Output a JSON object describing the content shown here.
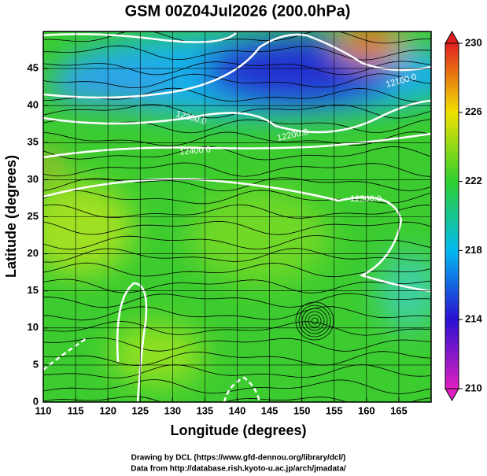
{
  "map": {
    "title": "GSM 00Z04Jul2026 (200.0hPa)",
    "x_label": "Longitude (degrees)",
    "y_label": "Latitude  (degrees)",
    "xlim": [
      110,
      170
    ],
    "ylim": [
      0,
      50
    ],
    "xticks": [
      110,
      115,
      120,
      125,
      130,
      135,
      140,
      145,
      150,
      155,
      160,
      165
    ],
    "yticks": [
      0,
      5,
      10,
      15,
      20,
      25,
      30,
      35,
      40,
      45
    ],
    "colorbar": {
      "lim": [
        210,
        230
      ],
      "ticks": [
        210,
        214,
        218,
        222,
        226,
        230
      ]
    },
    "contour_labels": [
      "12100.0",
      "12200.0",
      "12300.0",
      "12400.0",
      "12500.0"
    ],
    "footer": [
      "Drawing by DCL (https://www.gfd-dennou.org/library/dcl/)",
      "Data from http://database.rish.kyoto-u.ac.jp/arch/jmadata/"
    ]
  }
}
